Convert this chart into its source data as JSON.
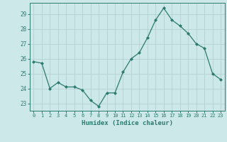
{
  "x": [
    0,
    1,
    2,
    3,
    4,
    5,
    6,
    7,
    8,
    9,
    10,
    11,
    12,
    13,
    14,
    15,
    16,
    17,
    18,
    19,
    20,
    21,
    22,
    23
  ],
  "y": [
    25.8,
    25.7,
    24.0,
    24.4,
    24.1,
    24.1,
    23.9,
    23.2,
    22.8,
    23.7,
    23.7,
    25.1,
    26.0,
    26.4,
    27.4,
    28.6,
    29.4,
    28.6,
    28.2,
    27.7,
    27.0,
    26.7,
    25.0,
    24.6
  ],
  "xlabel": "Humidex (Indice chaleur)",
  "ylim": [
    22.5,
    29.75
  ],
  "yticks": [
    23,
    24,
    25,
    26,
    27,
    28,
    29
  ],
  "line_color": "#2d7a6e",
  "bg_color": "#cce8e8",
  "grid_color": "#b0cece",
  "tick_color": "#2d7a6e",
  "label_color": "#2d7a6e"
}
